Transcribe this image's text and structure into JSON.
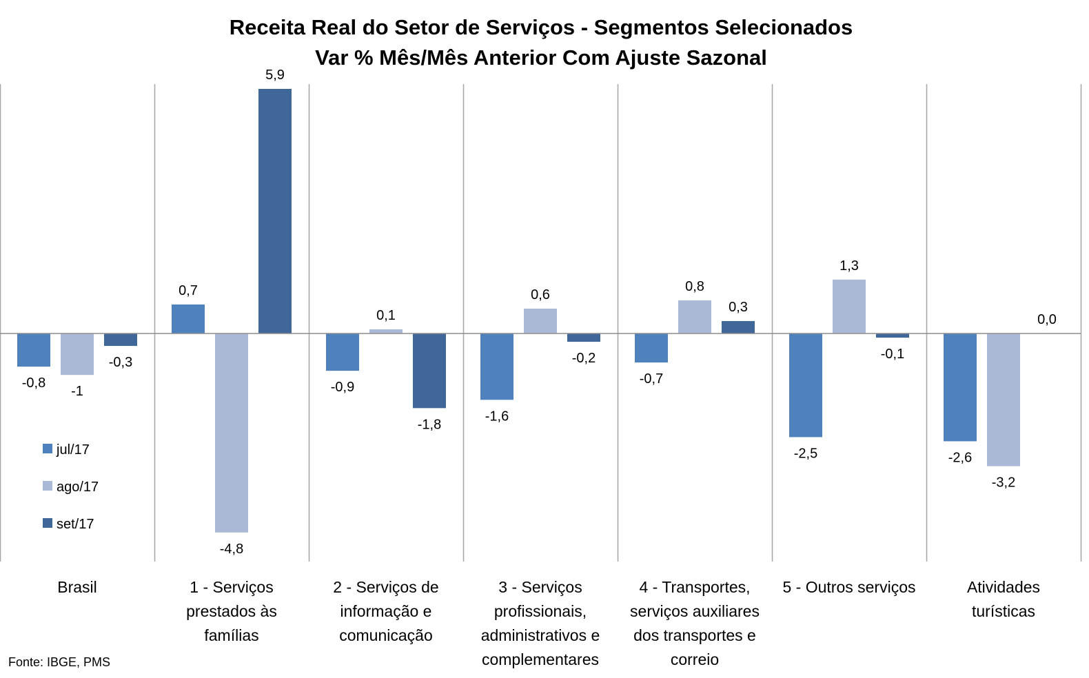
{
  "chart_data": {
    "type": "bar",
    "title": "Receita Real do Setor de Serviços - Segmentos Selecionados",
    "subtitle": "Var % Mês/Mês Anterior Com Ajuste Sazonal",
    "xlabel": "",
    "ylabel": "",
    "ylim": [
      -5.5,
      6.0
    ],
    "grid": "vertical category separators",
    "legend_position": "left-bottom",
    "categories": [
      [
        "Brasil"
      ],
      [
        "1 - Serviços",
        "prestados às",
        "famílias"
      ],
      [
        "2 - Serviços de",
        "informação e",
        "comunicação"
      ],
      [
        "3 - Serviços",
        "profissionais,",
        "administrativos e",
        "complementares"
      ],
      [
        "4 - Transportes,",
        "serviços auxiliares",
        "dos transportes e",
        "correio"
      ],
      [
        "5 - Outros serviços"
      ],
      [
        "Atividades",
        "turísticas"
      ]
    ],
    "series": [
      {
        "name": "jul/17",
        "color": "#4F81BD",
        "values": [
          -0.8,
          0.7,
          -0.9,
          -1.6,
          -0.7,
          -2.5,
          -2.6
        ],
        "labels": [
          "-0,8",
          "0,7",
          "-0,9",
          "-1,6",
          "-0,7",
          "-2,5",
          "-2,6"
        ]
      },
      {
        "name": "ago/17",
        "color": "#AAB9D6",
        "values": [
          -1.0,
          -4.8,
          0.1,
          0.6,
          0.8,
          1.3,
          -3.2
        ],
        "labels": [
          "-1",
          "-4,8",
          "0,1",
          "0,6",
          "0,8",
          "1,3",
          "-3,2"
        ]
      },
      {
        "name": "set/17",
        "color": "#3F6899",
        "values": [
          -0.3,
          5.9,
          -1.8,
          -0.2,
          0.3,
          -0.1,
          0.0
        ],
        "labels": [
          "-0,3",
          "5,9",
          "-1,8",
          "-0,2",
          "0,3",
          "-0,1",
          "0,0"
        ]
      }
    ],
    "source_note": "Fonte: IBGE, PMS"
  }
}
